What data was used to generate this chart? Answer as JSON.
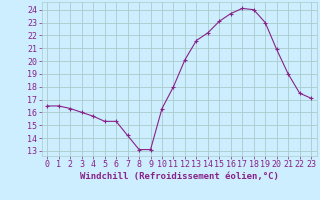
{
  "x": [
    0,
    1,
    2,
    3,
    4,
    5,
    6,
    7,
    8,
    9,
    10,
    11,
    12,
    13,
    14,
    15,
    16,
    17,
    18,
    19,
    20,
    21,
    22,
    23
  ],
  "y": [
    16.5,
    16.5,
    16.3,
    16.0,
    15.7,
    15.3,
    15.3,
    14.2,
    13.1,
    13.1,
    16.3,
    18.0,
    20.1,
    21.6,
    22.2,
    23.1,
    23.7,
    24.1,
    24.0,
    23.0,
    20.9,
    19.0,
    17.5,
    17.1
  ],
  "line_color": "#882288",
  "marker": "+",
  "marker_size": 3,
  "bg_color": "#cceeff",
  "grid_color": "#aacccc",
  "xlabel": "Windchill (Refroidissement éolien,°C)",
  "xlabel_fontsize": 6.5,
  "ylabel_ticks": [
    13,
    14,
    15,
    16,
    17,
    18,
    19,
    20,
    21,
    22,
    23,
    24
  ],
  "xlim": [
    -0.5,
    23.5
  ],
  "ylim": [
    12.6,
    24.6
  ],
  "tick_fontsize": 6.0,
  "line_width": 0.8
}
